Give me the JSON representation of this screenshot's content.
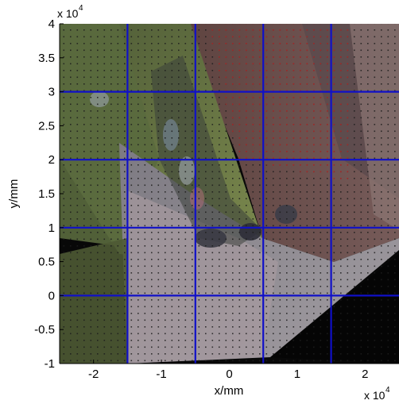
{
  "chart_data": {
    "type": "image",
    "xlabel": "x/mm",
    "ylabel": "y/mm",
    "x_multiplier": "x 10",
    "x_multiplier_exp": "4",
    "y_multiplier": "x 10",
    "y_multiplier_exp": "4",
    "xlim": [
      -2.5,
      2.5
    ],
    "ylim": [
      -1,
      4
    ],
    "x_ticks": [
      -2,
      -1,
      0,
      1,
      2
    ],
    "x_tick_labels": [
      "-2",
      "-1",
      "0",
      "1",
      "2"
    ],
    "y_ticks": [
      -1,
      -0.5,
      0,
      0.5,
      1,
      1.5,
      2,
      2.5,
      3,
      3.5,
      4
    ],
    "y_tick_labels": [
      "-1",
      "-0.5",
      "0",
      "0.5",
      "1",
      "1.5",
      "2",
      "2.5",
      "3",
      "3.5",
      "4"
    ],
    "grid_x": [
      -1.5,
      -0.5,
      0.5,
      1.5
    ],
    "grid_y": [
      0,
      1,
      2,
      3
    ],
    "grid_color": "#1010c8",
    "colors": {
      "background": "#0a0a0a",
      "floor": "#8f8a8e",
      "wall_left": "#6b7a44",
      "wall_right": "#7a5a56",
      "mirror": "#9b9b96",
      "dot_dark": "#2a2a2a",
      "dot_red": "#b02020"
    }
  }
}
